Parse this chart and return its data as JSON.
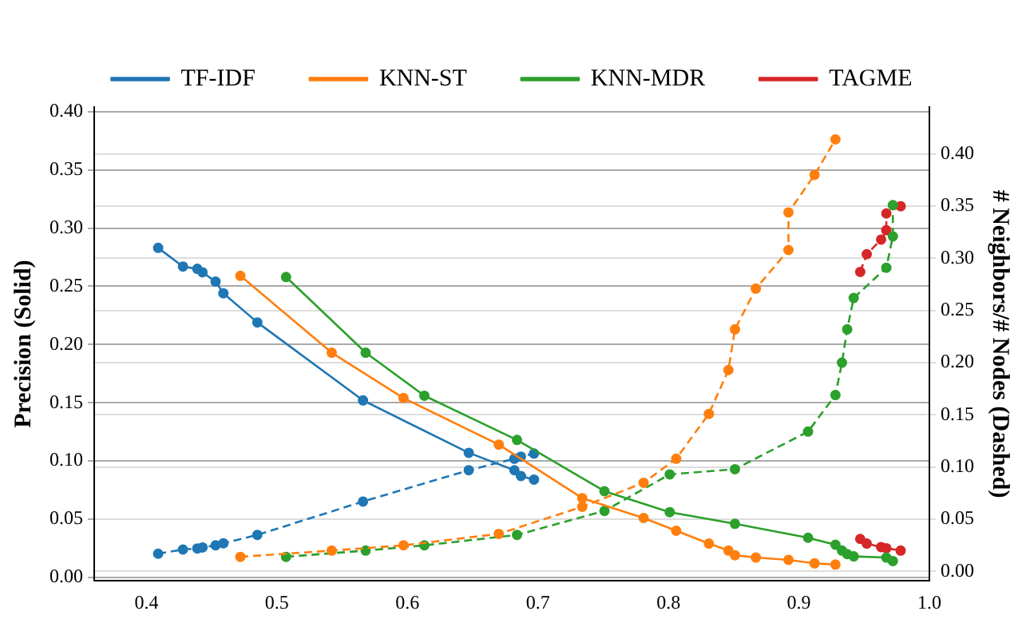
{
  "chart_data": {
    "type": "line",
    "ylabel": "Precision (Solid)",
    "y2label": "# Neighbors/# Nodes (Dashed)",
    "xlim": [
      0.36,
      1.0
    ],
    "xticks": [
      0.4,
      0.5,
      0.6,
      0.7,
      0.8,
      0.9,
      {
        "value": 1.0,
        "label": "1.0"
      }
    ],
    "ylim": [
      -0.003,
      0.404
    ],
    "yticks": [
      {
        "value": 0,
        "label": "0.00"
      },
      {
        "value": 0.05,
        "label": "0.05"
      },
      {
        "value": 0.1,
        "label": "0.10"
      },
      {
        "value": 0.15,
        "label": "0.15"
      },
      {
        "value": 0.2,
        "label": "0.20"
      },
      {
        "value": 0.25,
        "label": "0.25"
      },
      {
        "value": 0.3,
        "label": "0.30"
      },
      {
        "value": 0.35,
        "label": "0.35"
      },
      {
        "value": 0.4,
        "label": "0.40"
      }
    ],
    "y2lim": [
      -0.009,
      0.445
    ],
    "y2ticks": [
      {
        "value": 0,
        "label": "0.00"
      },
      {
        "value": 0.05,
        "label": "0.05"
      },
      {
        "value": 0.1,
        "label": "0.10"
      },
      {
        "value": 0.15,
        "label": "0.15"
      },
      {
        "value": 0.2,
        "label": "0.20"
      },
      {
        "value": 0.25,
        "label": "0.25"
      },
      {
        "value": 0.3,
        "label": "0.30"
      },
      {
        "value": 0.35,
        "label": "0.35"
      },
      {
        "value": 0.4,
        "label": "0.40"
      }
    ],
    "grid": "y",
    "legend": "top",
    "marker": "circle",
    "series": [
      {
        "name": "TF-IDF",
        "color": "#1f77b4",
        "line_style": "solid",
        "x": [
          0.409,
          0.428,
          0.439,
          0.443,
          0.453,
          0.459,
          0.485,
          0.566,
          0.647,
          0.682,
          0.687,
          0.697
        ],
        "values": [
          0.283,
          0.267,
          0.265,
          0.262,
          0.254,
          0.244,
          0.219,
          0.152,
          0.107,
          0.092,
          0.087,
          0.084
        ]
      },
      {
        "name": "KNN-ST",
        "color": "#ff7f0e",
        "line_style": "solid",
        "x": [
          0.472,
          0.542,
          0.597,
          0.67,
          0.734,
          0.781,
          0.806,
          0.831,
          0.846,
          0.851,
          0.867,
          0.892,
          0.912,
          0.928
        ],
        "values": [
          0.259,
          0.193,
          0.154,
          0.114,
          0.068,
          0.051,
          0.04,
          0.029,
          0.023,
          0.019,
          0.017,
          0.015,
          0.012,
          0.011
        ]
      },
      {
        "name": "KNN-MDR",
        "color": "#2ca02c",
        "line_style": "solid",
        "x": [
          0.507,
          0.568,
          0.613,
          0.684,
          0.751,
          0.801,
          0.851,
          0.907,
          0.928,
          0.933,
          0.937,
          0.942,
          0.967,
          0.972
        ],
        "values": [
          0.258,
          0.193,
          0.156,
          0.118,
          0.074,
          0.056,
          0.046,
          0.034,
          0.028,
          0.023,
          0.02,
          0.018,
          0.017,
          0.014
        ]
      },
      {
        "name": "TAGME",
        "color": "#d62728",
        "line_style": "solid",
        "x": [
          0.947,
          0.952,
          0.963,
          0.967,
          0.978
        ],
        "values": [
          0.033,
          0.029,
          0.026,
          0.025,
          0.023
        ]
      },
      {
        "color": "#1f77b4",
        "line_style": "dashed",
        "axis": "y2",
        "x": [
          0.409,
          0.428,
          0.439,
          0.443,
          0.453,
          0.459,
          0.485,
          0.566,
          0.647,
          0.682,
          0.687,
          0.697
        ],
        "values": [
          0.017,
          0.021,
          0.022,
          0.023,
          0.025,
          0.027,
          0.035,
          0.067,
          0.097,
          0.108,
          0.11,
          0.113
        ]
      },
      {
        "color": "#ff7f0e",
        "line_style": "dashed",
        "axis": "y2",
        "x": [
          0.472,
          0.542,
          0.597,
          0.67,
          0.734,
          0.781,
          0.806,
          0.831,
          0.846,
          0.851,
          0.867,
          0.892,
          0.892,
          0.912,
          0.928
        ],
        "values": [
          0.014,
          0.02,
          0.025,
          0.036,
          0.062,
          0.085,
          0.108,
          0.151,
          0.193,
          0.232,
          0.271,
          0.308,
          0.344,
          0.38,
          0.414
        ]
      },
      {
        "color": "#2ca02c",
        "line_style": "dashed",
        "axis": "y2",
        "x": [
          0.507,
          0.568,
          0.613,
          0.684,
          0.751,
          0.801,
          0.851,
          0.907,
          0.928,
          0.933,
          0.937,
          0.942,
          0.967,
          0.972,
          0.972
        ],
        "values": [
          0.014,
          0.02,
          0.025,
          0.035,
          0.058,
          0.093,
          0.098,
          0.134,
          0.169,
          0.2,
          0.232,
          0.262,
          0.291,
          0.321,
          0.351
        ]
      },
      {
        "color": "#d62728",
        "line_style": "dashed",
        "axis": "y2",
        "x": [
          0.947,
          0.952,
          0.963,
          0.967,
          0.967,
          0.978
        ],
        "values": [
          0.287,
          0.304,
          0.318,
          0.327,
          0.343,
          0.35
        ]
      }
    ]
  }
}
